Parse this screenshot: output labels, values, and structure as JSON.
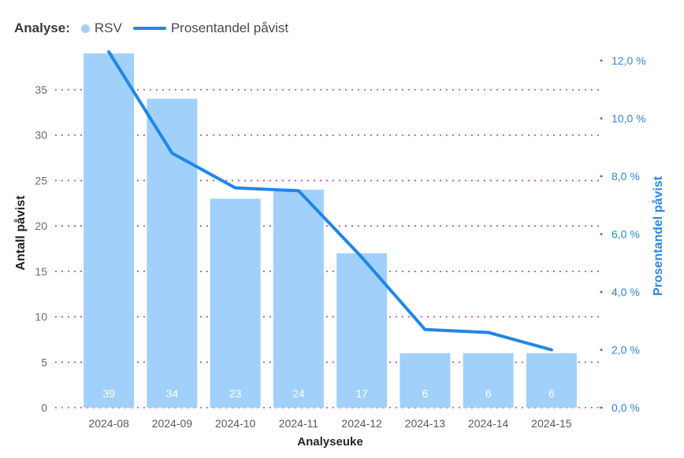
{
  "legend": {
    "prefix": "Analyse:",
    "items": [
      {
        "label": "RSV",
        "marker": "dot",
        "color": "#a1d0fa"
      },
      {
        "label": "Prosentandel påvist",
        "marker": "line",
        "color": "#1e87e8"
      }
    ]
  },
  "chart_data": {
    "type": "bar+line combo",
    "categories": [
      "2024-08",
      "2024-09",
      "2024-10",
      "2024-11",
      "2024-12",
      "2024-13",
      "2024-14",
      "2024-15"
    ],
    "series": [
      {
        "name": "RSV",
        "type": "bar",
        "axis": "left",
        "values": [
          39,
          34,
          23,
          24,
          17,
          6,
          6,
          6
        ],
        "color": "#a1d0fa",
        "label_color": "#ffffff"
      },
      {
        "name": "Prosentandel påvist",
        "type": "line",
        "axis": "right",
        "values": [
          12.3,
          8.8,
          7.6,
          7.5,
          5.2,
          2.7,
          2.6,
          2.0
        ],
        "color": "#1e87e8"
      }
    ],
    "xlabel": "Analyseuke",
    "ylabel_left": "Antall påvist",
    "ylabel_right": "Prosentandel påvist",
    "y_left_ticks": [
      0,
      5,
      10,
      15,
      20,
      25,
      30,
      35
    ],
    "y_left_range": [
      0,
      40
    ],
    "y_right_ticks": [
      0,
      2,
      4,
      6,
      8,
      10,
      12
    ],
    "y_right_tick_labels": [
      "0,0 %",
      "2,0 %",
      "4,0 %",
      "6,0 %",
      "8,0 %",
      "10,0 %",
      "12,0 %"
    ],
    "y_right_range": [
      0,
      12.55
    ],
    "grid": "dotted horizontal",
    "legend_position": "top-left"
  },
  "colors": {
    "background": "#ffffff",
    "bar": "#a1d0fa",
    "line": "#1e87e8",
    "grid": "#a52db8",
    "left_tick_text": "#6b6b6b",
    "left_title_text": "#212121",
    "right_axis_text": "#2e86e0",
    "x_tick_text": "#595959",
    "x_title_text": "#252525",
    "bar_label_text": "#ffffff"
  }
}
